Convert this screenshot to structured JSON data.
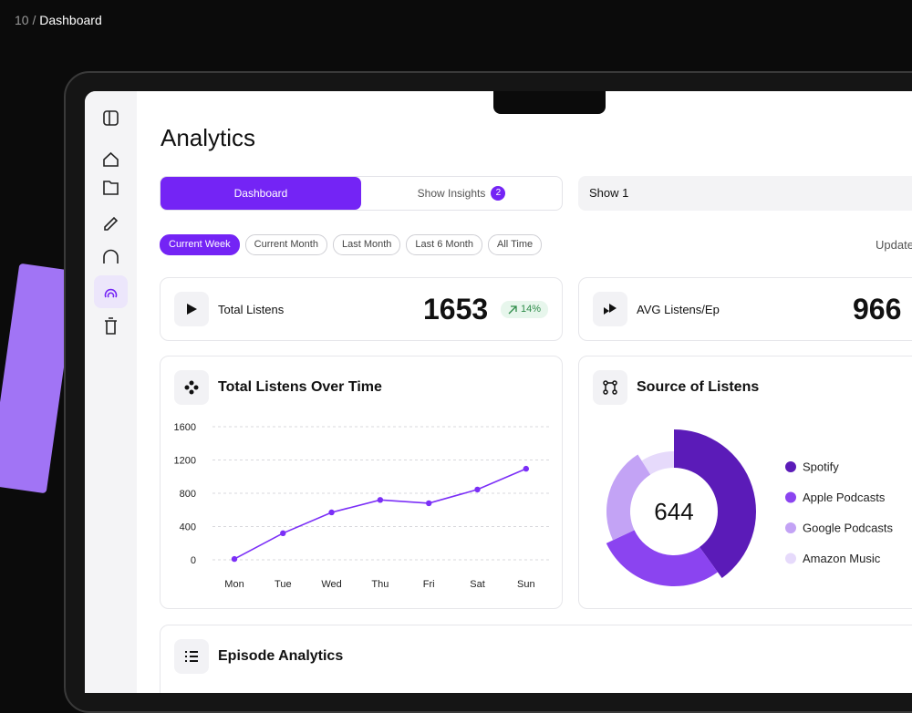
{
  "breadcrumb": {
    "number": "10",
    "separator": "/",
    "title": "Dashboard"
  },
  "page_title": "Analytics",
  "tabs": [
    {
      "label": "Dashboard"
    },
    {
      "label": "Show Insights",
      "badge": "2"
    }
  ],
  "active_tab": 0,
  "show_select": "Show 1",
  "filters": [
    "Current Week",
    "Current Month",
    "Last Month",
    "Last 6 Month",
    "All Time"
  ],
  "active_filter": 0,
  "update_label": "Update",
  "stats": [
    {
      "label": "Total Listens",
      "value": 1653,
      "change": "14%"
    },
    {
      "label": "AVG Listens/Ep",
      "value": 966
    }
  ],
  "episode_title": "Episode Analytics",
  "chart_data": [
    {
      "type": "line",
      "title": "Total Listens Over Time",
      "categories": [
        "Mon",
        "Tue",
        "Wed",
        "Thu",
        "Fri",
        "Sat",
        "Sun"
      ],
      "values": [
        10,
        320,
        570,
        720,
        680,
        845,
        1095
      ],
      "color": "#7b2ff7",
      "ylim": [
        0,
        1600
      ],
      "yticks": [
        0,
        400,
        800,
        1200,
        1600
      ],
      "grid": true
    },
    {
      "type": "donut",
      "title": "Source of Listens",
      "total": 644,
      "categories": [
        "Spotify",
        "Apple Podcasts",
        "Google Podcasts",
        "Amazon Music"
      ],
      "values": [
        258,
        180,
        148,
        58
      ],
      "colors": [
        "#5b1bb8",
        "#8b44f0",
        "#c3a3f5",
        "#e6dafb"
      ]
    }
  ]
}
